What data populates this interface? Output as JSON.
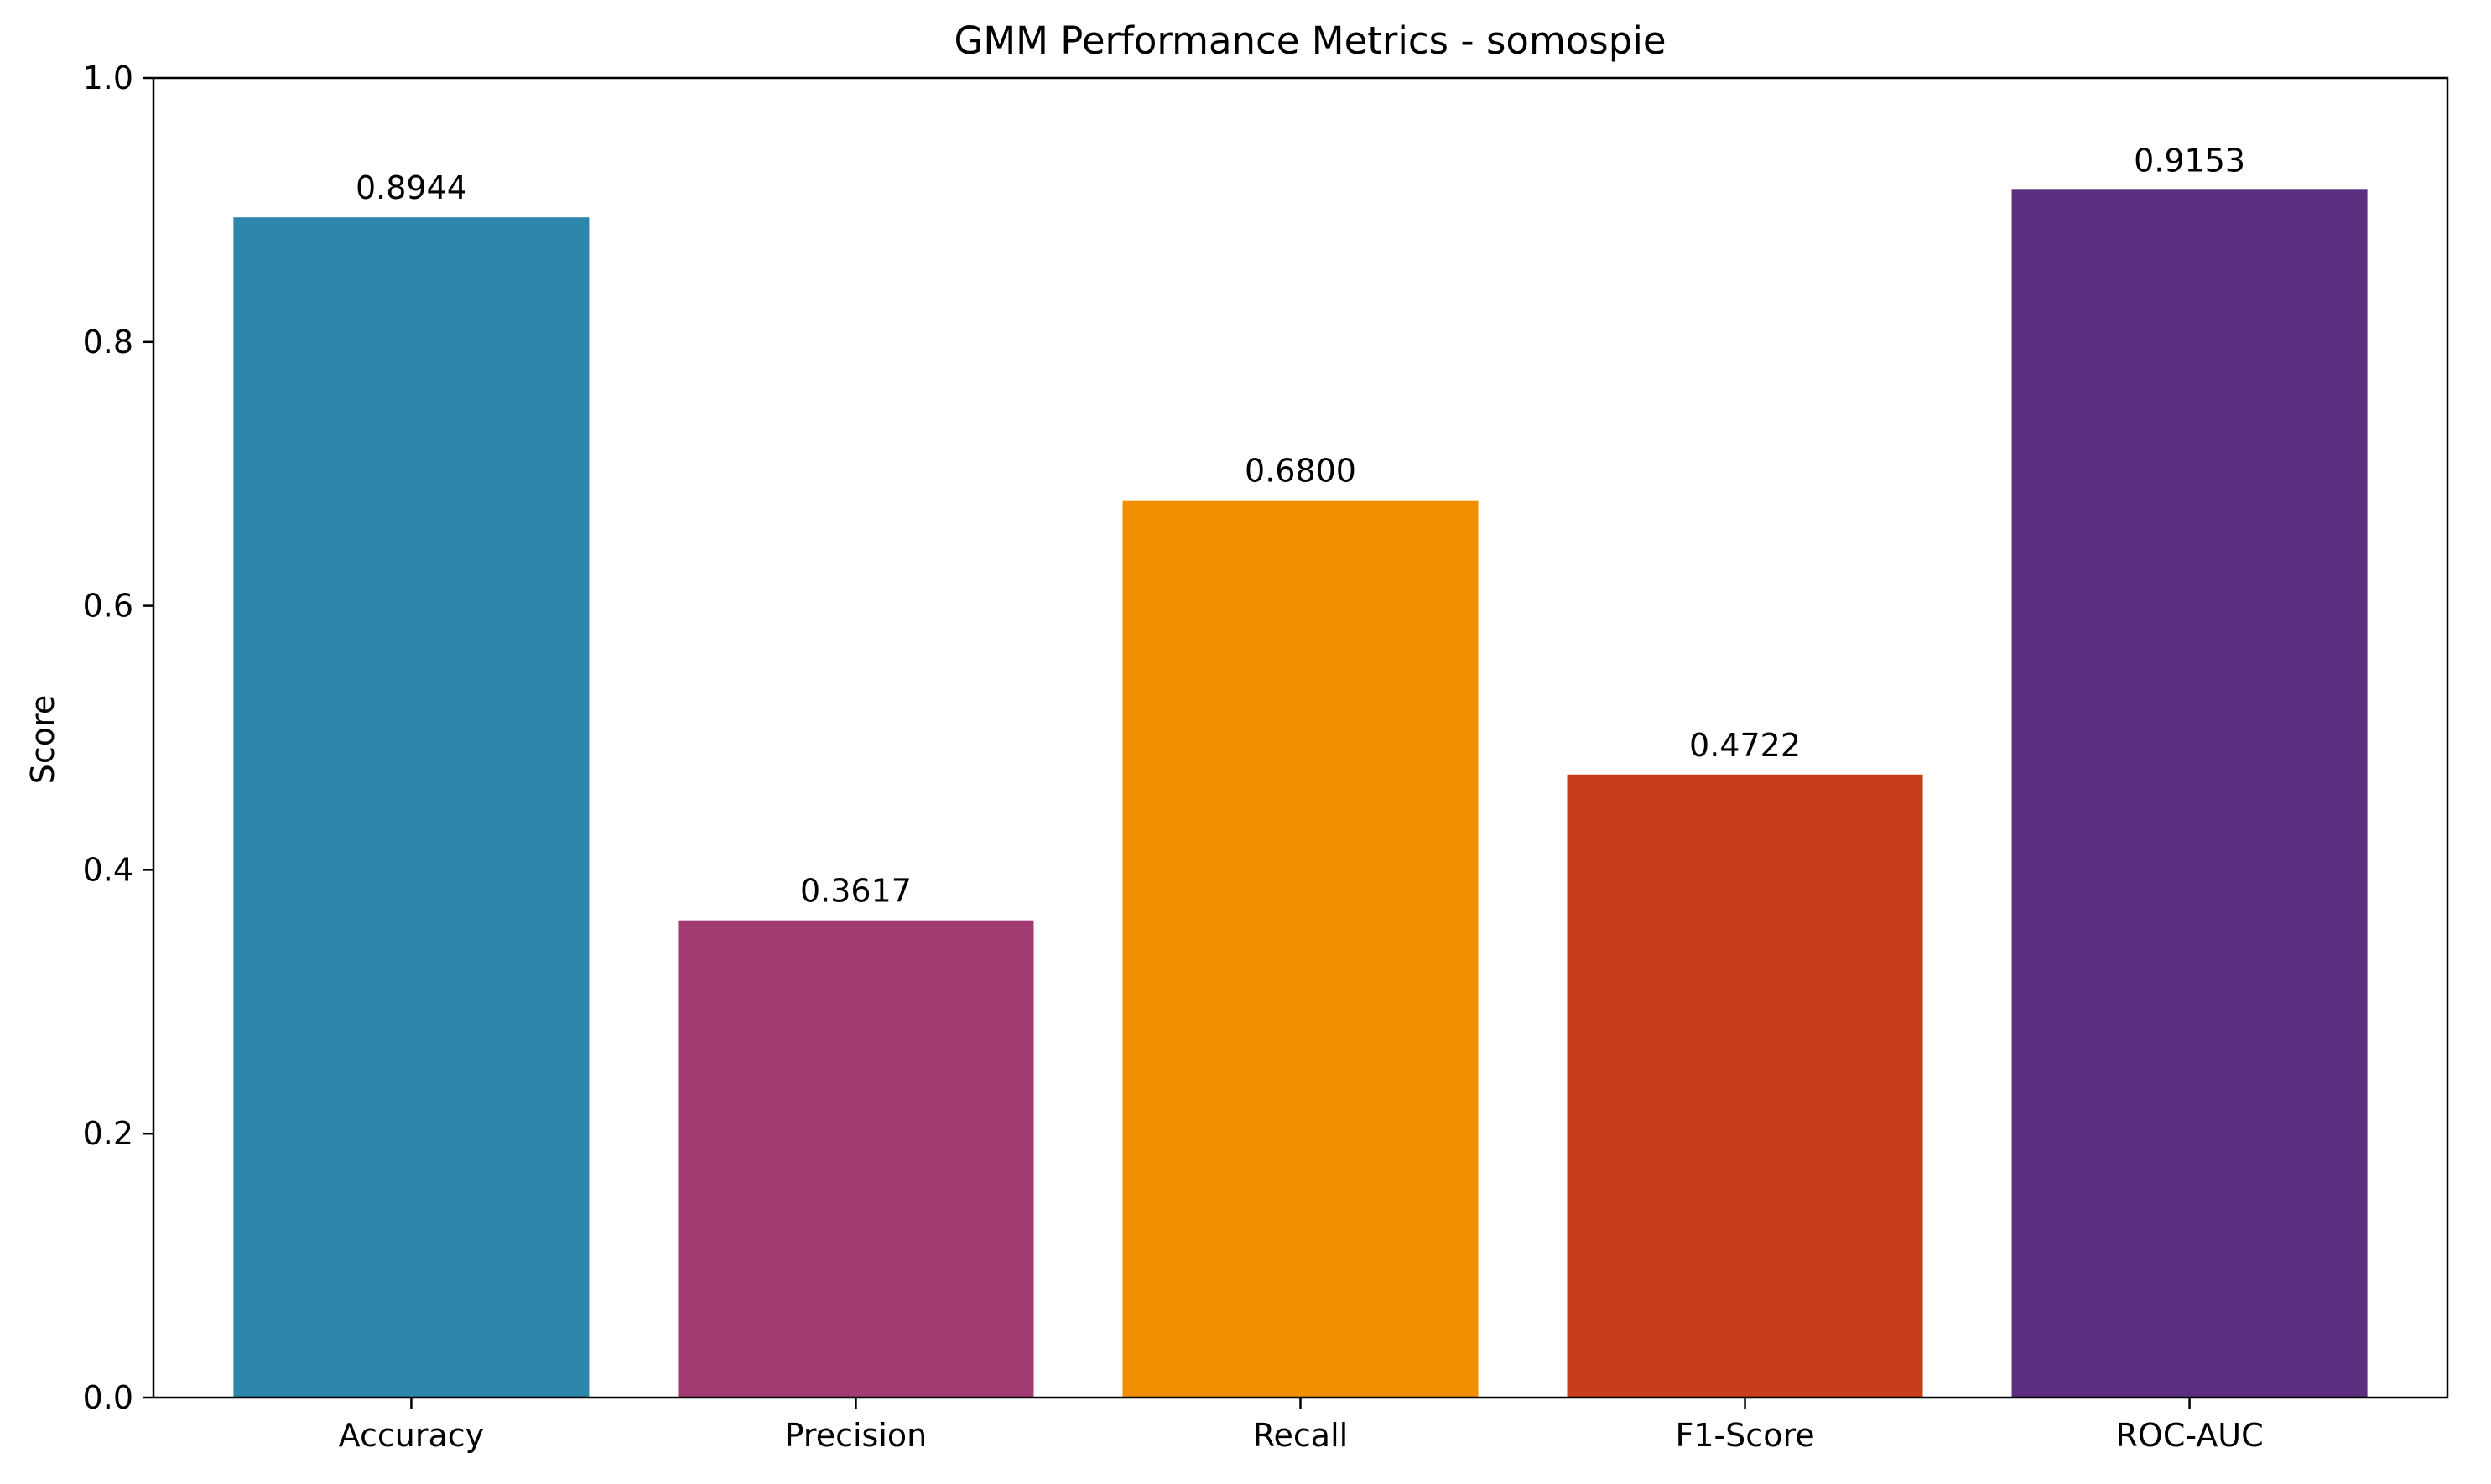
{
  "chart_data": {
    "type": "bar",
    "title": "GMM Performance Metrics - somospie",
    "xlabel": "",
    "ylabel": "Score",
    "categories": [
      "Accuracy",
      "Precision",
      "Recall",
      "F1-Score",
      "ROC-AUC"
    ],
    "values": [
      0.8944,
      0.3617,
      0.68,
      0.4722,
      0.9153
    ],
    "value_labels": [
      "0.8944",
      "0.3617",
      "0.6800",
      "0.4722",
      "0.9153"
    ],
    "colors": [
      "#2e86ab",
      "#a23b72",
      "#f18f01",
      "#c73e1d",
      "#5b2e80"
    ],
    "ylim": [
      0,
      1.0
    ],
    "yticks": [
      0.0,
      0.2,
      0.4,
      0.6,
      0.8,
      1.0
    ],
    "ytick_labels": [
      "0.0",
      "0.2",
      "0.4",
      "0.6",
      "0.8",
      "1.0"
    ],
    "grid": false,
    "legend": "none"
  }
}
